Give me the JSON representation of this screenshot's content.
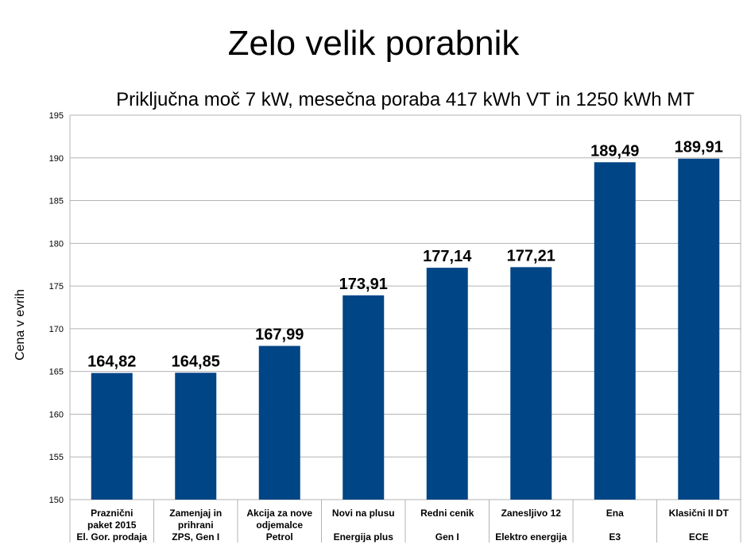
{
  "chart_data": {
    "type": "bar",
    "title": "Zelo velik porabnik",
    "subtitle": "Priključna moč 7 kW, mesečna poraba 417 kWh VT in 1250 kWh MT",
    "xlabel": "",
    "ylabel": "Cena v evrih",
    "ylim": [
      150,
      195
    ],
    "yticks": [
      150,
      155,
      160,
      165,
      170,
      175,
      180,
      185,
      190,
      195
    ],
    "grid": true,
    "bar_color": "#004586",
    "categories": [
      [
        "Praznični",
        "paket 2015",
        "El. Gor. prodaja"
      ],
      [
        "Zamenjaj in",
        "prihrani",
        "ZPS, Gen I"
      ],
      [
        "Akcija za nove",
        "odjemalce",
        "Petrol"
      ],
      [
        "Novi na plusu",
        "",
        "Energija plus"
      ],
      [
        "Redni cenik",
        "",
        "Gen I"
      ],
      [
        "Zanesljivo 12",
        "",
        "Elektro energija"
      ],
      [
        "Ena",
        "",
        "E3"
      ],
      [
        "Klasični II DT",
        "",
        "ECE"
      ]
    ],
    "values": [
      164.82,
      164.85,
      167.99,
      173.91,
      177.14,
      177.21,
      189.49,
      189.91
    ],
    "data_labels": [
      "164,82",
      "164,85",
      "167,99",
      "173,91",
      "177,14",
      "177,21",
      "189,49",
      "189,91"
    ]
  }
}
